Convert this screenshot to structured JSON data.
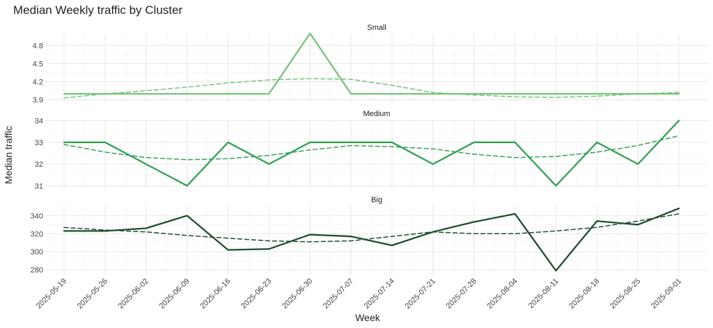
{
  "chart_data": {
    "type": "line",
    "title": "Median Weekly traffic by Cluster",
    "xlabel": "Week",
    "ylabel": "Median traffic",
    "x": [
      "2025-05-19",
      "2025-05-26",
      "2025-06-02",
      "2025-06-09",
      "2025-06-16",
      "2025-06-23",
      "2025-06-30",
      "2025-07-07",
      "2025-07-14",
      "2025-07-21",
      "2025-07-28",
      "2025-08-04",
      "2025-08-11",
      "2025-08-18",
      "2025-08-25",
      "2025-09-01"
    ],
    "grid": true,
    "legend": "none",
    "panels": [
      {
        "name": "Small",
        "color": "#74c476",
        "ylim": [
          3.85,
          5.0
        ],
        "yticks": [
          3.9,
          4.2,
          4.5,
          4.8
        ],
        "ytick_labels": [
          "3.9",
          "4.2",
          "4.5",
          "4.8"
        ],
        "series": [
          {
            "values": [
              4.0,
              4.0,
              4.0,
              4.0,
              4.0,
              4.0,
              5.0,
              4.0,
              4.0,
              4.0,
              4.0,
              4.0,
              4.0,
              4.0,
              4.0,
              4.0
            ]
          },
          {
            "style": "dashed",
            "values": [
              3.93,
              4.0,
              4.05,
              4.11,
              4.18,
              4.23,
              4.25,
              4.24,
              4.14,
              4.02,
              3.98,
              3.95,
              3.94,
              3.96,
              4.0,
              4.02
            ]
          }
        ]
      },
      {
        "name": "Medium",
        "color": "#31a354",
        "ylim": [
          30.85,
          34.05
        ],
        "yticks": [
          31,
          32,
          33,
          34
        ],
        "ytick_labels": [
          "31",
          "32",
          "33",
          "34"
        ],
        "series": [
          {
            "values": [
              33,
              33,
              32,
              31,
              33,
              32,
              33,
              33,
              33,
              32,
              33,
              33,
              31,
              33,
              32,
              34
            ]
          },
          {
            "style": "dashed",
            "values": [
              32.9,
              32.55,
              32.3,
              32.2,
              32.25,
              32.4,
              32.65,
              32.85,
              32.8,
              32.7,
              32.45,
              32.3,
              32.35,
              32.55,
              32.85,
              33.3
            ]
          }
        ]
      },
      {
        "name": "Big",
        "color": "#1b4d2e",
        "ylim": [
          274,
          351
        ],
        "yticks": [
          280,
          300,
          320,
          340
        ],
        "ytick_labels": [
          "280",
          "300",
          "320",
          "340"
        ],
        "series": [
          {
            "values": [
              323,
              323,
              326,
              340,
              302,
              303,
              319,
              317,
              307,
              322,
              333,
              342,
              279,
              334,
              330,
              348
            ]
          },
          {
            "style": "dashed",
            "values": [
              327,
              324,
              322,
              318,
              315,
              312,
              311,
              312,
              317,
              322,
              320,
              320,
              323,
              327,
              334,
              342
            ]
          }
        ]
      }
    ]
  }
}
